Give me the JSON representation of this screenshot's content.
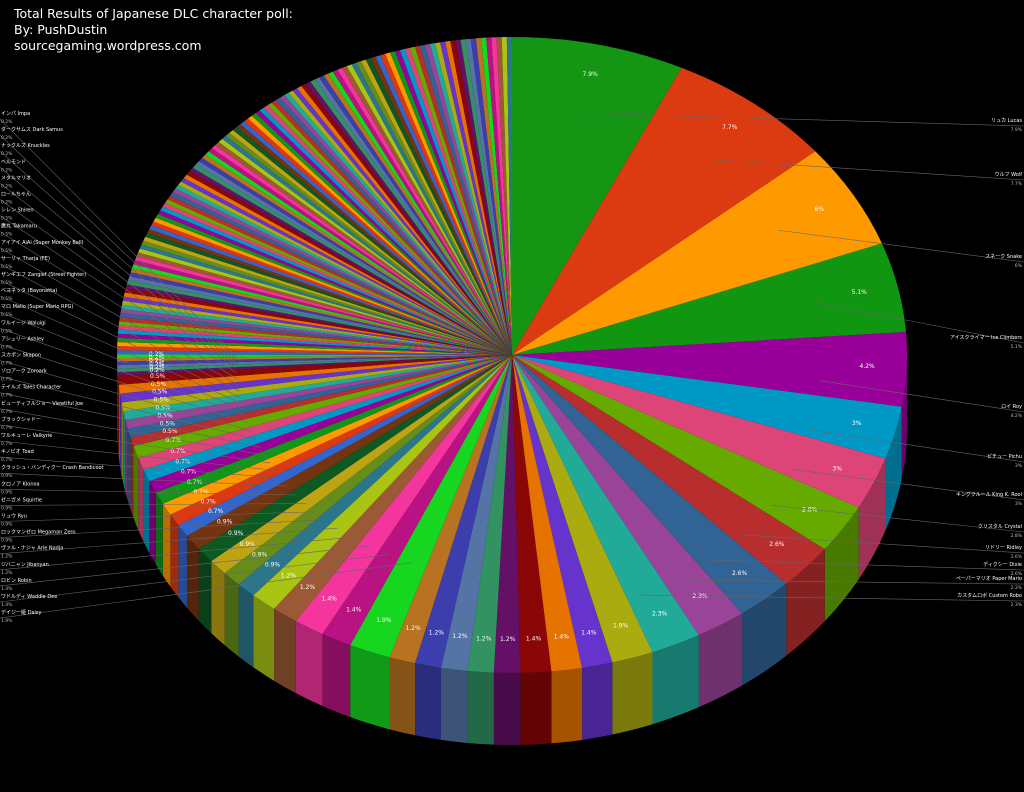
{
  "header": {
    "title": "Total Results of Japanese DLC character poll:",
    "byline": "By: PushDustin",
    "site": "sourcegaming.wordpress.com"
  },
  "chart_data": {
    "type": "pie",
    "title": "Total Results of Japanese DLC character poll:",
    "subtitle": "By: PushDustin",
    "background": "#000000",
    "slices": [
      {
        "label": "",
        "name": "リュカ Lucas",
        "value": 7.9,
        "text": "7.9%",
        "color": "#149614"
      },
      {
        "label": "",
        "name": "ウルフ Wolf",
        "value": 7.7,
        "text": "7.7%",
        "color": "#dc3b12"
      },
      {
        "label": "",
        "name": "スネーク Snake",
        "value": 6.0,
        "text": "6%",
        "color": "#ff9900"
      },
      {
        "label": "",
        "name": "アイスクライマー Ice Climbers",
        "value": 5.1,
        "text": "5.1%",
        "color": "#119611"
      },
      {
        "label": "",
        "name": "ロイ Roy",
        "value": 4.2,
        "text": "4.2%",
        "color": "#990099"
      },
      {
        "label": "",
        "name": "ピチュー Pichu",
        "value": 3.0,
        "text": "3%",
        "color": "#0099c6"
      },
      {
        "label": "",
        "name": "キングクルール King K. Rool",
        "value": 3.0,
        "text": "3%",
        "color": "#dd4477"
      },
      {
        "label": "",
        "name": "クリスタル Crystal",
        "value": 2.8,
        "text": "2.8%",
        "color": "#66aa00"
      },
      {
        "label": "",
        "name": "リドリー Ridley",
        "value": 2.6,
        "text": "2.6%",
        "color": "#b82e2e"
      },
      {
        "label": "",
        "name": "ディクシー Dixie",
        "value": 2.6,
        "text": "2.6%",
        "color": "#316395"
      },
      {
        "label": "",
        "name": "ペーパーマリオ Paper Mario",
        "value": 2.3,
        "text": "2.3%",
        "color": "#994499"
      },
      {
        "label": "",
        "name": "カスタムロボ Custom Robo",
        "value": 2.3,
        "text": "2.3%",
        "color": "#22aa99"
      },
      {
        "label": "",
        "name": "",
        "value": 1.9,
        "text": "1.9%",
        "color": "#aaaa11"
      },
      {
        "label": "",
        "name": "",
        "value": 1.4,
        "text": "1.4%",
        "color": "#6633cc"
      },
      {
        "label": "",
        "name": "",
        "value": 1.4,
        "text": "1.4%",
        "color": "#e67300"
      },
      {
        "label": "",
        "name": "",
        "value": 1.4,
        "text": "1.4%",
        "color": "#8b0707"
      },
      {
        "label": "",
        "name": "",
        "value": 1.2,
        "text": "1.2%",
        "color": "#651067"
      },
      {
        "label": "",
        "name": "",
        "value": 1.2,
        "text": "1.2%",
        "color": "#329262"
      },
      {
        "label": "",
        "name": "",
        "value": 1.2,
        "text": "1.2%",
        "color": "#5574a6"
      },
      {
        "label": "",
        "name": "",
        "value": 1.2,
        "text": "1.2%",
        "color": "#3b3eac"
      },
      {
        "label": "",
        "name": "",
        "value": 1.2,
        "text": "1.2%",
        "color": "#b77322"
      },
      {
        "label": "",
        "name": "デイジー姫 Daisy",
        "value": 1.9,
        "text": "1.9%",
        "color": "#16d620"
      },
      {
        "label": "",
        "name": "ワドルディ Waddle Dee",
        "value": 1.4,
        "text": "1.4%",
        "color": "#b91383"
      },
      {
        "label": "",
        "name": "ロビン Robin",
        "value": 1.4,
        "text": "1.4%",
        "color": "#f4359e"
      },
      {
        "label": "",
        "name": "ジバニャン Jibanyan",
        "value": 1.2,
        "text": "1.2%",
        "color": "#9c5935"
      },
      {
        "label": "",
        "name": "ヴァル・ナジャ Arle Nadja",
        "value": 1.2,
        "text": "1.2%",
        "color": "#a9c413"
      },
      {
        "label": "",
        "name": "ロックマンゼロ Megaman Zero",
        "value": 0.9,
        "text": "0.9%",
        "color": "#2a778d"
      },
      {
        "label": "",
        "name": "リュウ Ryu",
        "value": 0.9,
        "text": "0.9%",
        "color": "#668d1c"
      },
      {
        "label": "",
        "name": "ゼニガメ Squirtle",
        "value": 0.9,
        "text": "0.9%",
        "color": "#bea413"
      },
      {
        "label": "",
        "name": "クロノア Klonoa",
        "value": 0.9,
        "text": "0.9%",
        "color": "#0c5922"
      },
      {
        "label": "",
        "name": "クラッシュ・バンディクー Crash Bandicoot",
        "value": 0.9,
        "text": "0.9%",
        "color": "#743411"
      },
      {
        "label": "",
        "name": "キノピオ Toad",
        "value": 0.7,
        "text": "0.7%",
        "color": "#3366cc"
      },
      {
        "label": "",
        "name": "ワルキューレ Valkyrie",
        "value": 0.7,
        "text": "0.7%",
        "color": "#dc3912"
      },
      {
        "label": "",
        "name": "ブラックシャドー",
        "value": 0.7,
        "text": "0.7%",
        "color": "#ff9900"
      },
      {
        "label": "",
        "name": "ビューティフルジョー Viewtiful Joe",
        "value": 0.7,
        "text": "0.7%",
        "color": "#109618"
      },
      {
        "label": "",
        "name": "テイルズ Tales Character",
        "value": 0.7,
        "text": "0.7%",
        "color": "#990099"
      },
      {
        "label": "",
        "name": "ゾロアーク Zoroark",
        "value": 0.7,
        "text": "0.7%",
        "color": "#0099c6"
      },
      {
        "label": "",
        "name": "スカポン Skapon",
        "value": 0.7,
        "text": "0.7%",
        "color": "#dd4477"
      },
      {
        "label": "",
        "name": "アシュリー Ashley",
        "value": 0.7,
        "text": "0.7%",
        "color": "#66aa00"
      },
      {
        "label": "",
        "name": "ワルイージ Waluigi",
        "value": 0.5,
        "text": "0.5%",
        "color": "#b82e2e"
      },
      {
        "label": "",
        "name": "マロ Mallo (Super Mario RPG)",
        "value": 0.5,
        "text": "0.5%",
        "color": "#316395"
      },
      {
        "label": "",
        "name": "ベヨネッタ (Bayonetta)",
        "value": 0.5,
        "text": "0.5%",
        "color": "#994499"
      },
      {
        "label": "",
        "name": "ザンギエフ Zangief (Street Fighter)",
        "value": 0.5,
        "text": "0.5%",
        "color": "#22aa99"
      },
      {
        "label": "",
        "name": "サーリャ Tharja (FE)",
        "value": 0.5,
        "text": "0.5%",
        "color": "#aaaa11"
      },
      {
        "label": "",
        "name": "アイアイ AiAi (Super Monkey Ball)",
        "value": 0.5,
        "text": "0.5%",
        "color": "#6633cc"
      },
      {
        "label": "",
        "name": "鷹丸 Takamaru",
        "value": 0.5,
        "text": "0.5%",
        "color": "#e67300"
      },
      {
        "label": "",
        "name": "シレン Shiren",
        "value": 0.5,
        "text": "0.5%",
        "color": "#8b0707"
      },
      {
        "label": "",
        "name": "ロールちゃん",
        "value": 0.2,
        "text": "0.2%",
        "color": "#651067"
      },
      {
        "label": "",
        "name": "メタルマリオ",
        "value": 0.2,
        "text": "0.2%",
        "color": "#329262"
      },
      {
        "label": "",
        "name": "ベルモンド",
        "value": 0.2,
        "text": "0.2%",
        "color": "#5574a6"
      },
      {
        "label": "",
        "name": "ナックルズ Knuckles",
        "value": 0.2,
        "text": "0.2%",
        "color": "#3b3eac"
      },
      {
        "label": "",
        "name": "ダークサムス Dark Samus",
        "value": 0.2,
        "text": "0.2%",
        "color": "#b77322"
      },
      {
        "label": "",
        "name": "インパ Impa",
        "value": 0.2,
        "text": "0.2%",
        "color": "#16d620"
      }
    ],
    "minor_slices": {
      "count": 120,
      "value_each": 0.233,
      "colors": [
        "#3366cc",
        "#dc3912",
        "#ff9900",
        "#109618",
        "#990099",
        "#0099c6",
        "#dd4477",
        "#66aa00",
        "#b82e2e",
        "#316395",
        "#994499",
        "#22aa99",
        "#aaaa11",
        "#6633cc",
        "#e67300",
        "#8b0707",
        "#651067",
        "#329262",
        "#5574a6",
        "#3b3eac",
        "#b77322",
        "#16d620",
        "#b91383",
        "#f4359e",
        "#9c5935",
        "#a9c413",
        "#2a778d",
        "#668d1c",
        "#bea413",
        "#0c5922",
        "#743411"
      ]
    }
  }
}
